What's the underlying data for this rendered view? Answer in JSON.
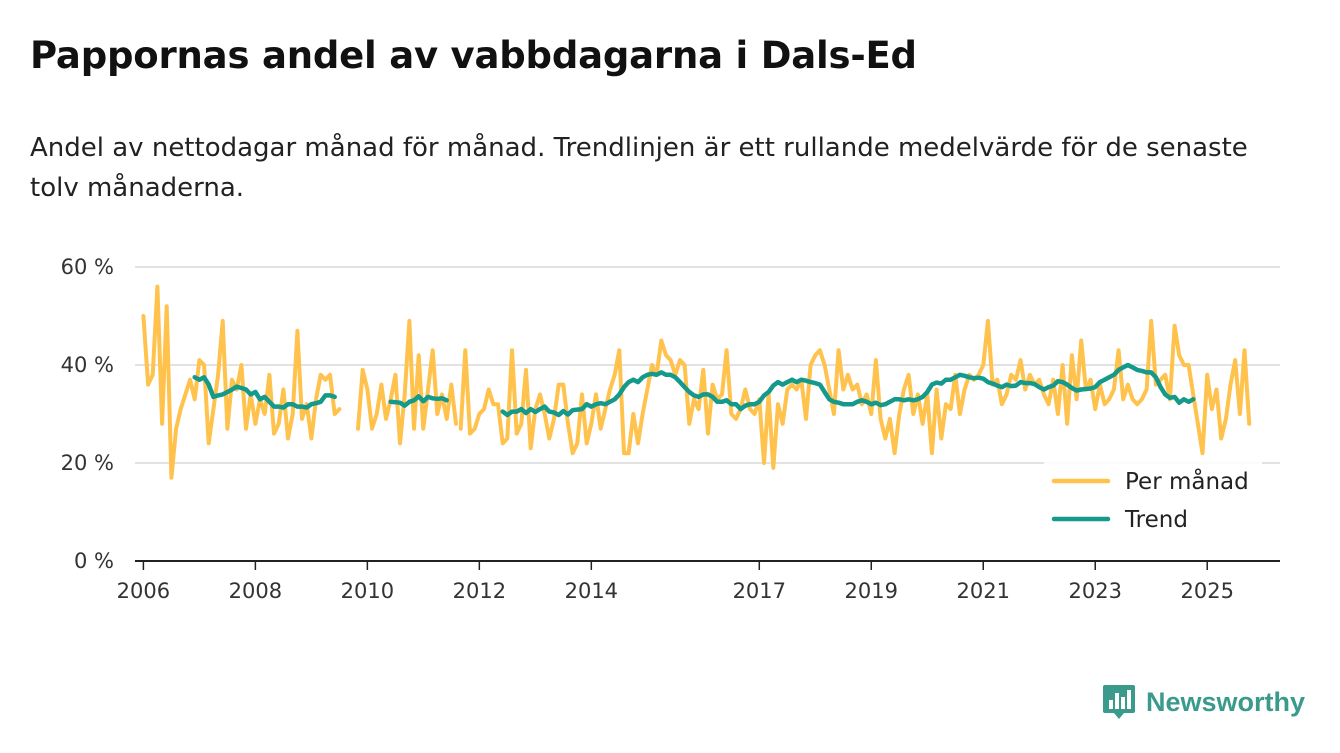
{
  "title": "Pappornas andel av vabbdagarna i Dals-Ed",
  "subtitle": "Andel av nettodagar månad för månad. Trendlinjen är ett rullande medelvärde för de senaste tolv månaderna.",
  "brand": {
    "name": "Newsworthy",
    "color": "#3a9a8c",
    "icon": "bar-chart-logo-icon"
  },
  "colors": {
    "monthly": "#ffc24d",
    "trend": "#14998a",
    "grid": "#d9d9d9",
    "axis": "#222222"
  },
  "chart_data": {
    "type": "line",
    "title": "Pappornas andel av vabbdagarna i Dals-Ed",
    "xlabel": "",
    "ylabel": "",
    "xlim": [
      2005.85,
      2026.3
    ],
    "ylim": [
      0,
      60
    ],
    "y_ticks": [
      0,
      20,
      40,
      60
    ],
    "y_tick_labels": [
      "0 %",
      "20 %",
      "40 %",
      "60 %"
    ],
    "x_ticks": [
      2006,
      2008,
      2010,
      2012,
      2014,
      2017,
      2019,
      2021,
      2023,
      2025
    ],
    "x_tick_labels": [
      "2006",
      "2008",
      "2010",
      "2012",
      "2014",
      "2017",
      "2019",
      "2021",
      "2023",
      "2025"
    ],
    "grid": true,
    "legend_position": "bottom-right",
    "series": [
      {
        "name": "Per månad",
        "key": "monthly",
        "segments": [
          {
            "start": 2006.0,
            "step": 0.0833333,
            "values": [
              50,
              36,
              38,
              56,
              28,
              52,
              17,
              27,
              31,
              34,
              37,
              33,
              41,
              40,
              24,
              31,
              38,
              49,
              27,
              37,
              35,
              40,
              27,
              34,
              28,
              33,
              30,
              38,
              26,
              28,
              35,
              25,
              30,
              47,
              29,
              32,
              25,
              33,
              38,
              37,
              38,
              30,
              31
            ]
          },
          {
            "start": 2009.8333,
            "step": 0.0833333,
            "values": [
              27,
              39,
              35,
              27,
              30,
              36,
              29,
              33,
              38,
              24,
              34,
              49,
              27,
              42,
              27,
              35,
              43,
              30,
              34,
              29,
              36,
              28
            ]
          },
          {
            "start": 2011.6667,
            "step": 0.0833333,
            "values": [
              27,
              43,
              26,
              27,
              30,
              31,
              35,
              32,
              32,
              24,
              25,
              43,
              26,
              28,
              39,
              23,
              31,
              34,
              30,
              25,
              29,
              36,
              36,
              28,
              22,
              24,
              34,
              24,
              28,
              34,
              27,
              31,
              35,
              38,
              43,
              22,
              22,
              30,
              24,
              30,
              35,
              40,
              38,
              45,
              42,
              41,
              38,
              41,
              40,
              28,
              33,
              31,
              39,
              26,
              36,
              33,
              34,
              43,
              30,
              29,
              31,
              35,
              31,
              30,
              33,
              20,
              34,
              19,
              32,
              28,
              35,
              36,
              35,
              37,
              29,
              40,
              42,
              43,
              40,
              35,
              30,
              43,
              35,
              38,
              35,
              36,
              32,
              34,
              30,
              41,
              29,
              25,
              29,
              22,
              30,
              35,
              38,
              30,
              34,
              28,
              34,
              22,
              35,
              25,
              32,
              31,
              38,
              30,
              35,
              38,
              37,
              38,
              40,
              49,
              36,
              37,
              32,
              34,
              38,
              37,
              41,
              35,
              38,
              36,
              37,
              34,
              32,
              37,
              30,
              40,
              28,
              42,
              33,
              45,
              35,
              37,
              31,
              36,
              32,
              33,
              35,
              43,
              33,
              36,
              33,
              32,
              33,
              35,
              49,
              36,
              37,
              38,
              33,
              48,
              42,
              40,
              40,
              34,
              28,
              22,
              38,
              31,
              35,
              25,
              29,
              36,
              41,
              30,
              43,
              28
            ]
          }
        ]
      },
      {
        "name": "Trend",
        "key": "trend",
        "segments": [
          {
            "start": 2006.9167,
            "step": 0.0833333,
            "values": [
              37.5,
              37,
              37.5,
              36,
              33.5,
              33.8,
              34,
              34.5,
              35,
              35.6,
              35.3,
              35,
              34,
              34.5,
              33,
              33.5,
              32.5,
              31.5,
              31.5,
              31.3,
              32,
              32,
              31.5,
              31.5,
              31.3,
              32,
              32.2,
              32.5,
              33.8,
              33.8,
              33.5
            ]
          },
          {
            "start": 2010.4167,
            "step": 0.0833333,
            "values": [
              32.5,
              32.4,
              32.3,
              31.7,
              32.5,
              32.8,
              33.6,
              32.6,
              33.5,
              33.2,
              33.1,
              33.2,
              32.8
            ]
          },
          {
            "start": 2012.4167,
            "step": 0.0833333,
            "values": [
              30.5,
              29.8,
              30.5,
              30.5,
              31,
              30.2,
              31,
              30.4,
              31,
              31.5,
              30.5,
              30.3,
              29.8,
              30.6,
              29.9,
              30.8,
              30.9,
              31,
              32,
              31.5,
              32,
              32.2,
              32,
              32.5,
              33,
              34,
              35.5,
              36.5,
              37,
              36.5,
              37.5,
              38,
              38.2,
              38,
              38.5,
              38,
              38,
              37.5,
              36.5,
              35.5,
              34.5,
              33.8,
              33.5,
              34,
              34,
              33.5,
              32.5,
              32.5,
              32.8,
              32,
              32,
              31,
              31.7,
              32,
              32,
              32.5,
              33.8,
              34.5,
              35.8,
              36.5,
              36,
              36.5,
              37,
              36.5,
              37,
              36.8,
              36.5,
              36.3,
              36,
              34.5,
              33,
              32.5,
              32.3,
              32,
              32,
              32,
              32.5,
              32.8,
              32.5,
              32,
              32.3,
              31.8,
              32,
              32.5,
              33,
              33,
              32.8,
              33,
              32.8,
              33,
              33.5,
              34.5,
              36,
              36.4,
              36.2,
              37,
              37,
              37.5,
              38,
              37.8,
              37.5,
              37.3,
              37.4,
              37.2,
              36.5,
              36.2,
              35.8,
              35.5,
              36,
              35.7,
              35.8,
              36.5,
              36.3,
              36.3,
              36.1,
              35.5,
              35,
              35.5,
              35.8,
              36.7,
              36.5,
              36,
              35.3,
              34.8,
              35,
              35.1,
              35.2,
              35.5,
              36.5,
              37,
              37.5,
              38,
              39,
              39.5,
              40,
              39.5,
              39,
              38.8,
              38.5,
              38.5,
              37.5,
              35.5,
              34,
              33.3,
              33.5,
              32.3,
              33,
              32.5,
              33
            ]
          }
        ]
      }
    ]
  }
}
